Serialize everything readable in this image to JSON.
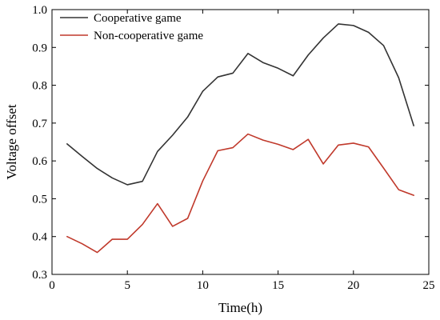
{
  "chart_data": {
    "type": "line",
    "title": "",
    "xlabel": "Time(h)",
    "ylabel": "Voltage offset",
    "xlim": [
      0,
      25
    ],
    "ylim": [
      0.3,
      1.0
    ],
    "x_ticks": [
      0,
      5,
      10,
      15,
      20,
      25
    ],
    "y_ticks": [
      0.3,
      0.4,
      0.5,
      0.6,
      0.7,
      0.8,
      0.9,
      1.0
    ],
    "x_tick_labels": [
      "0",
      "5",
      "10",
      "15",
      "20",
      "25"
    ],
    "y_tick_labels": [
      "0.3",
      "0.4",
      "0.5",
      "0.6",
      "0.7",
      "0.8",
      "0.9",
      "1.0"
    ],
    "grid": false,
    "legend_position": "top-left",
    "x": [
      1,
      2,
      3,
      4,
      5,
      6,
      7,
      8,
      9,
      10,
      11,
      12,
      13,
      14,
      15,
      16,
      17,
      18,
      19,
      20,
      21,
      22,
      23,
      24
    ],
    "series": [
      {
        "name": "Cooperative game",
        "color": "#333333",
        "values": [
          0.645,
          0.612,
          0.58,
          0.555,
          0.537,
          0.546,
          0.625,
          0.668,
          0.716,
          0.784,
          0.822,
          0.832,
          0.884,
          0.86,
          0.845,
          0.825,
          0.88,
          0.925,
          0.962,
          0.958,
          0.94,
          0.905,
          0.82,
          0.693
        ]
      },
      {
        "name": "Non-cooperative game",
        "color": "#c0392b",
        "values": [
          0.4,
          0.381,
          0.358,
          0.393,
          0.393,
          0.432,
          0.487,
          0.427,
          0.448,
          0.547,
          0.627,
          0.635,
          0.671,
          0.655,
          0.644,
          0.63,
          0.657,
          0.592,
          0.642,
          0.647,
          0.637,
          0.581,
          0.524,
          0.509
        ]
      }
    ]
  }
}
